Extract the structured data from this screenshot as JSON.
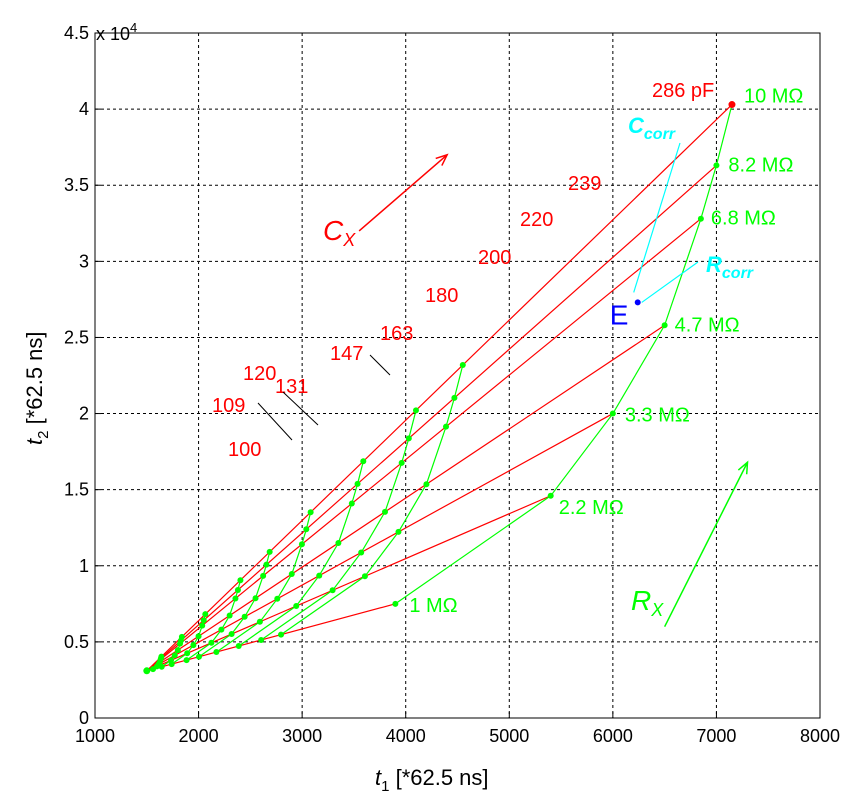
{
  "chart_data": {
    "type": "line",
    "xlabel": {
      "var": "t",
      "sub": "1",
      "unit": " [*62.5 ns]"
    },
    "ylabel": {
      "var": "t",
      "sub": "2",
      "unit": " [*62.5 ns]"
    },
    "xlim": [
      1000,
      8000
    ],
    "ylim": [
      0,
      45000
    ],
    "y_exponent_label": "x 10",
    "y_exponent_power": "4",
    "x_ticks": [
      "1000",
      "2000",
      "3000",
      "4000",
      "5000",
      "6000",
      "7000",
      "8000"
    ],
    "y_ticks": [
      "0",
      "0.5",
      "1",
      "1.5",
      "2",
      "2.5",
      "3",
      "3.5",
      "4",
      "4.5"
    ],
    "grid": true,
    "colors": {
      "cx": "#ff0000",
      "rx": "#00ff00",
      "corr": "#00ffff",
      "point": "#0000ff",
      "grid": "#000000"
    },
    "rx_labels": [
      "1 MΩ",
      "2.2 MΩ",
      "3.3 MΩ",
      "4.7 MΩ",
      "6.8 MΩ",
      "8.2 MΩ",
      "10 MΩ"
    ],
    "cx_labels": [
      "100",
      "109",
      "120",
      "131",
      "147",
      "163",
      "180",
      "200",
      "220",
      "239",
      "286 pF"
    ],
    "rx_lines": [
      {
        "name": "1 MΩ",
        "x0": 1500,
        "y0": 3100,
        "x1": 3900,
        "y1": 7500
      },
      {
        "name": "2.2 MΩ",
        "x0": 1500,
        "y0": 3100,
        "x1": 5400,
        "y1": 14600
      },
      {
        "name": "3.3 MΩ",
        "x0": 1500,
        "y0": 3100,
        "x1": 6000,
        "y1": 20000
      },
      {
        "name": "4.7 MΩ",
        "x0": 1500,
        "y0": 3100,
        "x1": 6500,
        "y1": 25800
      },
      {
        "name": "6.8 MΩ",
        "x0": 1500,
        "y0": 3100,
        "x1": 6850,
        "y1": 32800
      },
      {
        "name": "8.2 MΩ",
        "x0": 1500,
        "y0": 3100,
        "x1": 7000,
        "y1": 36300
      },
      {
        "name": "10 MΩ",
        "x0": 1500,
        "y0": 3100,
        "x1": 7150,
        "y1": 40300
      }
    ],
    "cx_t": [
      0,
      0.025,
      0.06,
      0.1,
      0.16,
      0.21,
      0.28,
      0.37,
      0.46,
      0.54,
      1.0
    ],
    "cx_curve_gamma": 1.8,
    "arrows": {
      "cx": {
        "x0": 3550,
        "y0": 32000,
        "x1": 4400,
        "y1": 37000
      },
      "rx": {
        "x0": 6500,
        "y0": 6000,
        "x1": 7300,
        "y1": 16800
      }
    },
    "axis_labels_text": {
      "cx": "C",
      "cx_sub": "X",
      "rx": "R",
      "rx_sub": "X"
    },
    "corr": {
      "c_label": "C",
      "c_sub": "corr",
      "r_label": "R",
      "r_sub": "corr",
      "point_label": "E",
      "point": {
        "x": 6240,
        "y": 27300
      }
    }
  }
}
